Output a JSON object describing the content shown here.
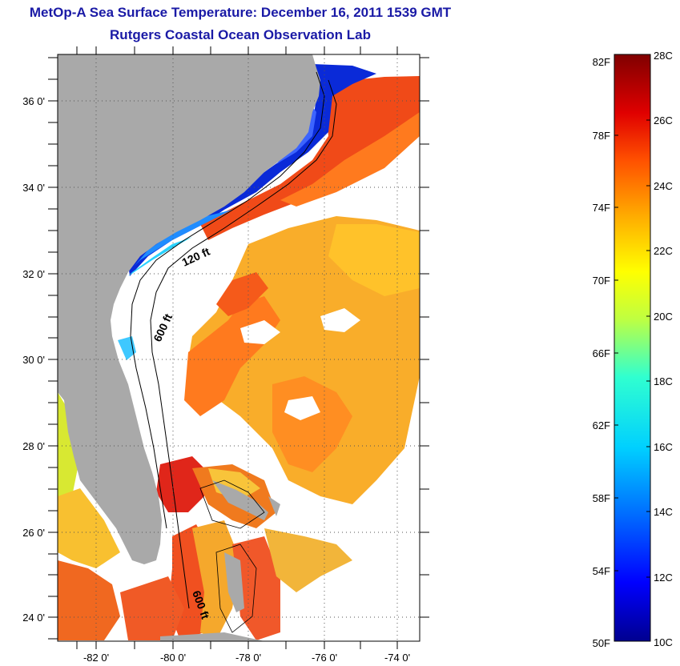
{
  "header": {
    "title": "MetOp-A Sea Surface Temperature:  December 16, 2011 1539 GMT",
    "subtitle": "Rutgers Coastal Ocean Observation Lab"
  },
  "map": {
    "region": "US Southeast Atlantic coast, Florida and the Bahamas",
    "lat_ticks": [
      "36 0'",
      "34 0'",
      "32 0'",
      "30 0'",
      "28 0'",
      "26 0'",
      "24 0'"
    ],
    "lon_ticks": [
      "-82 0'",
      "-80 0'",
      "-78 0'",
      "-76 0'",
      "-74 0'"
    ],
    "lat_range": [
      23,
      37
    ],
    "lon_range": [
      -83,
      -73
    ],
    "gridlines": "dotted",
    "contours": [
      "120 ft",
      "600 ft",
      "600 ft"
    ],
    "colors": {
      "land": "#a9a9a9",
      "no_data": "#ffffff",
      "contour_line": "#000000"
    }
  },
  "colorbar": {
    "fahrenheit_labels": [
      "82F",
      "78F",
      "74F",
      "70F",
      "66F",
      "62F",
      "58F",
      "54F",
      "50F"
    ],
    "celsius_labels": [
      "28C",
      "26C",
      "24C",
      "22C",
      "20C",
      "18C",
      "16C",
      "14C",
      "12C",
      "10C"
    ],
    "range_c": [
      10,
      28
    ],
    "stops": [
      "#00008f",
      "#0000ff",
      "#0070ff",
      "#00d0ff",
      "#30ffd0",
      "#c0ff40",
      "#ffff00",
      "#ffb000",
      "#ff5000",
      "#e00000",
      "#800000"
    ]
  }
}
